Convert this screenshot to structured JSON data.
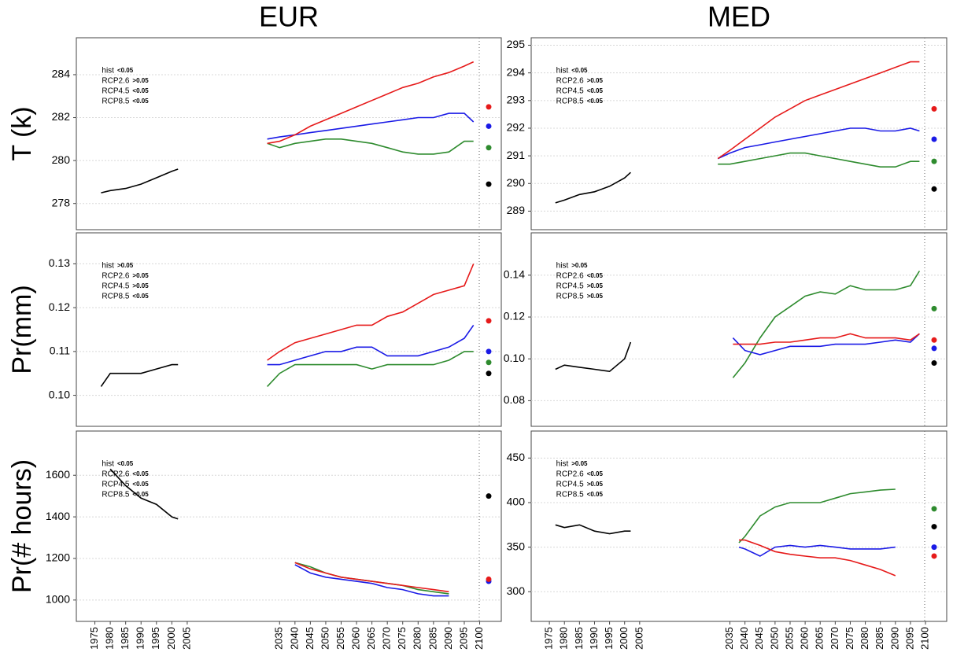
{
  "chart_data": [
    {
      "type": "line",
      "title": "EUR",
      "ylabel": "T (k)",
      "grid": true,
      "xlim": [
        1970,
        2106
      ],
      "ylim": [
        277,
        285.5
      ],
      "yticks": [
        278,
        280,
        282,
        284
      ],
      "series": [
        {
          "name": "hist",
          "color": "#000000",
          "p_label": "<0.05",
          "x": [
            1977,
            1980,
            1985,
            1990,
            1995,
            2000,
            2002
          ],
          "values": [
            278.5,
            278.6,
            278.7,
            278.9,
            279.2,
            279.5,
            279.6
          ],
          "end_value": 278.9
        },
        {
          "name": "RCP2.6",
          "color": "#2e8b2e",
          "p_label": ">0.05",
          "x": [
            2031,
            2035,
            2040,
            2045,
            2050,
            2055,
            2060,
            2065,
            2070,
            2075,
            2080,
            2085,
            2090,
            2095,
            2098
          ],
          "values": [
            280.8,
            280.6,
            280.8,
            280.9,
            281.0,
            281.0,
            280.9,
            280.8,
            280.6,
            280.4,
            280.3,
            280.3,
            280.4,
            280.9,
            280.9
          ],
          "end_value": 280.6
        },
        {
          "name": "RCP4.5",
          "color": "#1a1ae6",
          "p_label": "<0.05",
          "x": [
            2031,
            2035,
            2040,
            2045,
            2050,
            2055,
            2060,
            2065,
            2070,
            2075,
            2080,
            2085,
            2090,
            2095,
            2098
          ],
          "values": [
            281.0,
            281.1,
            281.2,
            281.3,
            281.4,
            281.5,
            281.6,
            281.7,
            281.8,
            281.9,
            282.0,
            282.0,
            282.2,
            282.2,
            281.8
          ],
          "end_value": 281.6
        },
        {
          "name": "RCP8.5",
          "color": "#e61a1a",
          "p_label": "<0.05",
          "x": [
            2031,
            2035,
            2040,
            2045,
            2050,
            2055,
            2060,
            2065,
            2070,
            2075,
            2080,
            2085,
            2090,
            2095,
            2098
          ],
          "values": [
            280.8,
            280.9,
            281.2,
            281.6,
            281.9,
            282.2,
            282.5,
            282.8,
            283.1,
            283.4,
            283.6,
            283.9,
            284.1,
            284.4,
            284.6
          ],
          "end_value": 282.5
        }
      ]
    },
    {
      "type": "line",
      "title": "MED",
      "grid": true,
      "xlim": [
        1970,
        2106
      ],
      "ylim": [
        288.5,
        295.1
      ],
      "yticks": [
        289,
        290,
        291,
        292,
        293,
        294,
        295
      ],
      "series": [
        {
          "name": "hist",
          "color": "#000000",
          "p_label": "<0.05",
          "x": [
            1977,
            1980,
            1985,
            1990,
            1995,
            2000,
            2002
          ],
          "values": [
            289.3,
            289.4,
            289.6,
            289.7,
            289.9,
            290.2,
            290.4
          ],
          "end_value": 289.8
        },
        {
          "name": "RCP2.6",
          "color": "#2e8b2e",
          "p_label": ">0.05",
          "x": [
            2031,
            2035,
            2040,
            2045,
            2050,
            2055,
            2060,
            2065,
            2070,
            2075,
            2080,
            2085,
            2090,
            2095,
            2098
          ],
          "values": [
            290.7,
            290.7,
            290.8,
            290.9,
            291.0,
            291.1,
            291.1,
            291.0,
            290.9,
            290.8,
            290.7,
            290.6,
            290.6,
            290.8,
            290.8
          ],
          "end_value": 290.8
        },
        {
          "name": "RCP4.5",
          "color": "#1a1ae6",
          "p_label": "<0.05",
          "x": [
            2031,
            2035,
            2040,
            2045,
            2050,
            2055,
            2060,
            2065,
            2070,
            2075,
            2080,
            2085,
            2090,
            2095,
            2098
          ],
          "values": [
            290.9,
            291.1,
            291.3,
            291.4,
            291.5,
            291.6,
            291.7,
            291.8,
            291.9,
            292.0,
            292.0,
            291.9,
            291.9,
            292.0,
            291.9
          ],
          "end_value": 291.6
        },
        {
          "name": "RCP8.5",
          "color": "#e61a1a",
          "p_label": "<0.05",
          "x": [
            2031,
            2035,
            2040,
            2045,
            2050,
            2055,
            2060,
            2065,
            2070,
            2075,
            2080,
            2085,
            2090,
            2095,
            2098
          ],
          "values": [
            290.9,
            291.2,
            291.6,
            292.0,
            292.4,
            292.7,
            293.0,
            293.2,
            293.4,
            293.6,
            293.8,
            294.0,
            294.2,
            294.4,
            294.4
          ],
          "end_value": 292.7
        }
      ]
    },
    {
      "type": "line",
      "ylabel": "Pr(mm)",
      "grid": true,
      "xlim": [
        1970,
        2106
      ],
      "ylim": [
        0.094,
        0.136
      ],
      "yticks": [
        {
          "value": 0.1,
          "label": "0.10"
        },
        0.11,
        0.12,
        0.13
      ],
      "series": [
        {
          "name": "hist",
          "color": "#000000",
          "p_label": ">0.05",
          "x": [
            1977,
            1980,
            1985,
            1990,
            1995,
            2000,
            2002
          ],
          "values": [
            0.102,
            0.105,
            0.105,
            0.105,
            0.106,
            0.107,
            0.107
          ],
          "end_value": 0.105
        },
        {
          "name": "RCP2.6",
          "color": "#2e8b2e",
          "p_label": ">0.05",
          "x": [
            2031,
            2035,
            2040,
            2045,
            2050,
            2055,
            2060,
            2065,
            2070,
            2075,
            2080,
            2085,
            2090,
            2095,
            2098
          ],
          "values": [
            0.102,
            0.105,
            0.107,
            0.107,
            0.107,
            0.107,
            0.107,
            0.106,
            0.107,
            0.107,
            0.107,
            0.107,
            0.108,
            0.11,
            0.11
          ],
          "end_value": 0.1075
        },
        {
          "name": "RCP4.5",
          "color": "#1a1ae6",
          "p_label": ">0.05",
          "x": [
            2031,
            2035,
            2040,
            2045,
            2050,
            2055,
            2060,
            2065,
            2070,
            2075,
            2080,
            2085,
            2090,
            2095,
            2098
          ],
          "values": [
            0.107,
            0.107,
            0.108,
            0.109,
            0.11,
            0.11,
            0.111,
            0.111,
            0.109,
            0.109,
            0.109,
            0.11,
            0.111,
            0.113,
            0.116
          ],
          "end_value": 0.11
        },
        {
          "name": "RCP8.5",
          "color": "#e61a1a",
          "p_label": "<0.05",
          "x": [
            2031,
            2035,
            2040,
            2045,
            2050,
            2055,
            2060,
            2065,
            2070,
            2075,
            2080,
            2085,
            2090,
            2095,
            2098
          ],
          "values": [
            0.108,
            0.11,
            0.112,
            0.113,
            0.114,
            0.115,
            0.116,
            0.116,
            0.118,
            0.119,
            0.121,
            0.123,
            0.124,
            0.125,
            0.13
          ],
          "end_value": 0.117
        }
      ]
    },
    {
      "type": "line",
      "grid": true,
      "xlim": [
        1970,
        2106
      ],
      "ylim": [
        0.07,
        0.158
      ],
      "yticks": [
        0.08,
        {
          "value": 0.1,
          "label": "0.10"
        },
        0.12,
        0.14
      ],
      "series": [
        {
          "name": "hist",
          "color": "#000000",
          "p_label": ">0.05",
          "x": [
            1977,
            1980,
            1985,
            1990,
            1995,
            2000,
            2002
          ],
          "values": [
            0.095,
            0.097,
            0.096,
            0.095,
            0.094,
            0.1,
            0.108
          ],
          "end_value": 0.098
        },
        {
          "name": "RCP2.6",
          "color": "#2e8b2e",
          "p_label": "<0.05",
          "x": [
            2036,
            2040,
            2045,
            2050,
            2055,
            2060,
            2065,
            2070,
            2075,
            2080,
            2085,
            2090,
            2095,
            2098
          ],
          "values": [
            0.091,
            0.098,
            0.11,
            0.12,
            0.125,
            0.13,
            0.132,
            0.131,
            0.135,
            0.133,
            0.133,
            0.133,
            0.135,
            0.142
          ],
          "end_value": 0.124
        },
        {
          "name": "RCP4.5",
          "color": "#1a1ae6",
          "p_label": ">0.05",
          "x": [
            2036,
            2040,
            2045,
            2050,
            2055,
            2060,
            2065,
            2070,
            2075,
            2080,
            2085,
            2090,
            2095,
            2098
          ],
          "values": [
            0.11,
            0.104,
            0.102,
            0.104,
            0.106,
            0.106,
            0.106,
            0.107,
            0.107,
            0.107,
            0.108,
            0.109,
            0.108,
            0.112
          ],
          "end_value": 0.105
        },
        {
          "name": "RCP8.5",
          "color": "#e61a1a",
          "p_label": ">0.05",
          "x": [
            2036,
            2040,
            2045,
            2050,
            2055,
            2060,
            2065,
            2070,
            2075,
            2080,
            2085,
            2090,
            2095,
            2098
          ],
          "values": [
            0.107,
            0.107,
            0.107,
            0.108,
            0.108,
            0.109,
            0.11,
            0.11,
            0.112,
            0.11,
            0.11,
            0.11,
            0.109,
            0.112
          ],
          "end_value": 0.109
        }
      ]
    },
    {
      "type": "line",
      "ylabel": "Pr(# hours)",
      "grid": true,
      "xlim": [
        1970,
        2106
      ],
      "ylim": [
        920,
        1790
      ],
      "yticks": [
        1000,
        1200,
        1400,
        1600
      ],
      "xticks": [
        1975,
        1980,
        1985,
        1990,
        1995,
        2000,
        2005,
        2035,
        2040,
        2045,
        2050,
        2055,
        2060,
        2065,
        2070,
        2075,
        2080,
        2085,
        2090,
        2095,
        2100
      ],
      "series": [
        {
          "name": "hist",
          "color": "#000000",
          "p_label": "<0.05",
          "x": [
            1980,
            1985,
            1990,
            1995,
            2000,
            2002
          ],
          "values": [
            1630,
            1550,
            1490,
            1460,
            1400,
            1390
          ],
          "end_value": 1500
        },
        {
          "name": "RCP2.6",
          "color": "#2e8b2e",
          "p_label": "<0.05",
          "x": [
            2040,
            2045,
            2050,
            2055,
            2060,
            2065,
            2070,
            2075,
            2080,
            2085,
            2090
          ],
          "values": [
            1180,
            1160,
            1130,
            1110,
            1100,
            1090,
            1080,
            1070,
            1050,
            1040,
            1030
          ],
          "end_value": null
        },
        {
          "name": "RCP4.5",
          "color": "#1a1ae6",
          "p_label": "<0.05",
          "x": [
            2040,
            2045,
            2050,
            2055,
            2060,
            2065,
            2070,
            2075,
            2080,
            2085,
            2090
          ],
          "values": [
            1170,
            1130,
            1110,
            1100,
            1090,
            1080,
            1060,
            1050,
            1030,
            1020,
            1020
          ],
          "end_value": 1090
        },
        {
          "name": "RCP8.5",
          "color": "#e61a1a",
          "p_label": "<0.05",
          "x": [
            2040,
            2045,
            2050,
            2055,
            2060,
            2065,
            2070,
            2075,
            2080,
            2085,
            2090
          ],
          "values": [
            1180,
            1150,
            1130,
            1110,
            1100,
            1090,
            1080,
            1070,
            1060,
            1050,
            1040
          ],
          "end_value": 1100
        }
      ]
    },
    {
      "type": "line",
      "grid": true,
      "xlim": [
        1970,
        2106
      ],
      "ylim": [
        272,
        475
      ],
      "yticks": [
        300,
        350,
        400,
        450
      ],
      "xticks": [
        1975,
        1980,
        1985,
        1990,
        1995,
        2000,
        2005,
        2035,
        2040,
        2045,
        2050,
        2055,
        2060,
        2065,
        2070,
        2075,
        2080,
        2085,
        2090,
        2095,
        2100
      ],
      "series": [
        {
          "name": "hist",
          "color": "#000000",
          "p_label": ">0.05",
          "x": [
            1977,
            1980,
            1985,
            1990,
            1995,
            2000,
            2002
          ],
          "values": [
            375,
            372,
            375,
            368,
            365,
            368,
            368
          ],
          "end_value": 373
        },
        {
          "name": "RCP2.6",
          "color": "#2e8b2e",
          "p_label": "<0.05",
          "x": [
            2038,
            2040,
            2045,
            2050,
            2055,
            2060,
            2065,
            2070,
            2075,
            2080,
            2085,
            2090
          ],
          "values": [
            355,
            362,
            385,
            395,
            400,
            400,
            400,
            405,
            410,
            412,
            414,
            415
          ],
          "end_value": 393
        },
        {
          "name": "RCP4.5",
          "color": "#1a1ae6",
          "p_label": ">0.05",
          "x": [
            2038,
            2040,
            2045,
            2050,
            2055,
            2060,
            2065,
            2070,
            2075,
            2080,
            2085,
            2090
          ],
          "values": [
            350,
            348,
            340,
            350,
            352,
            350,
            352,
            350,
            348,
            348,
            348,
            350
          ],
          "end_value": 350
        },
        {
          "name": "RCP8.5",
          "color": "#e61a1a",
          "p_label": "<0.05",
          "x": [
            2038,
            2040,
            2045,
            2050,
            2055,
            2060,
            2065,
            2070,
            2075,
            2080,
            2085,
            2090
          ],
          "values": [
            358,
            358,
            352,
            345,
            342,
            340,
            338,
            338,
            335,
            330,
            325,
            318
          ],
          "end_value": 340
        }
      ]
    }
  ]
}
